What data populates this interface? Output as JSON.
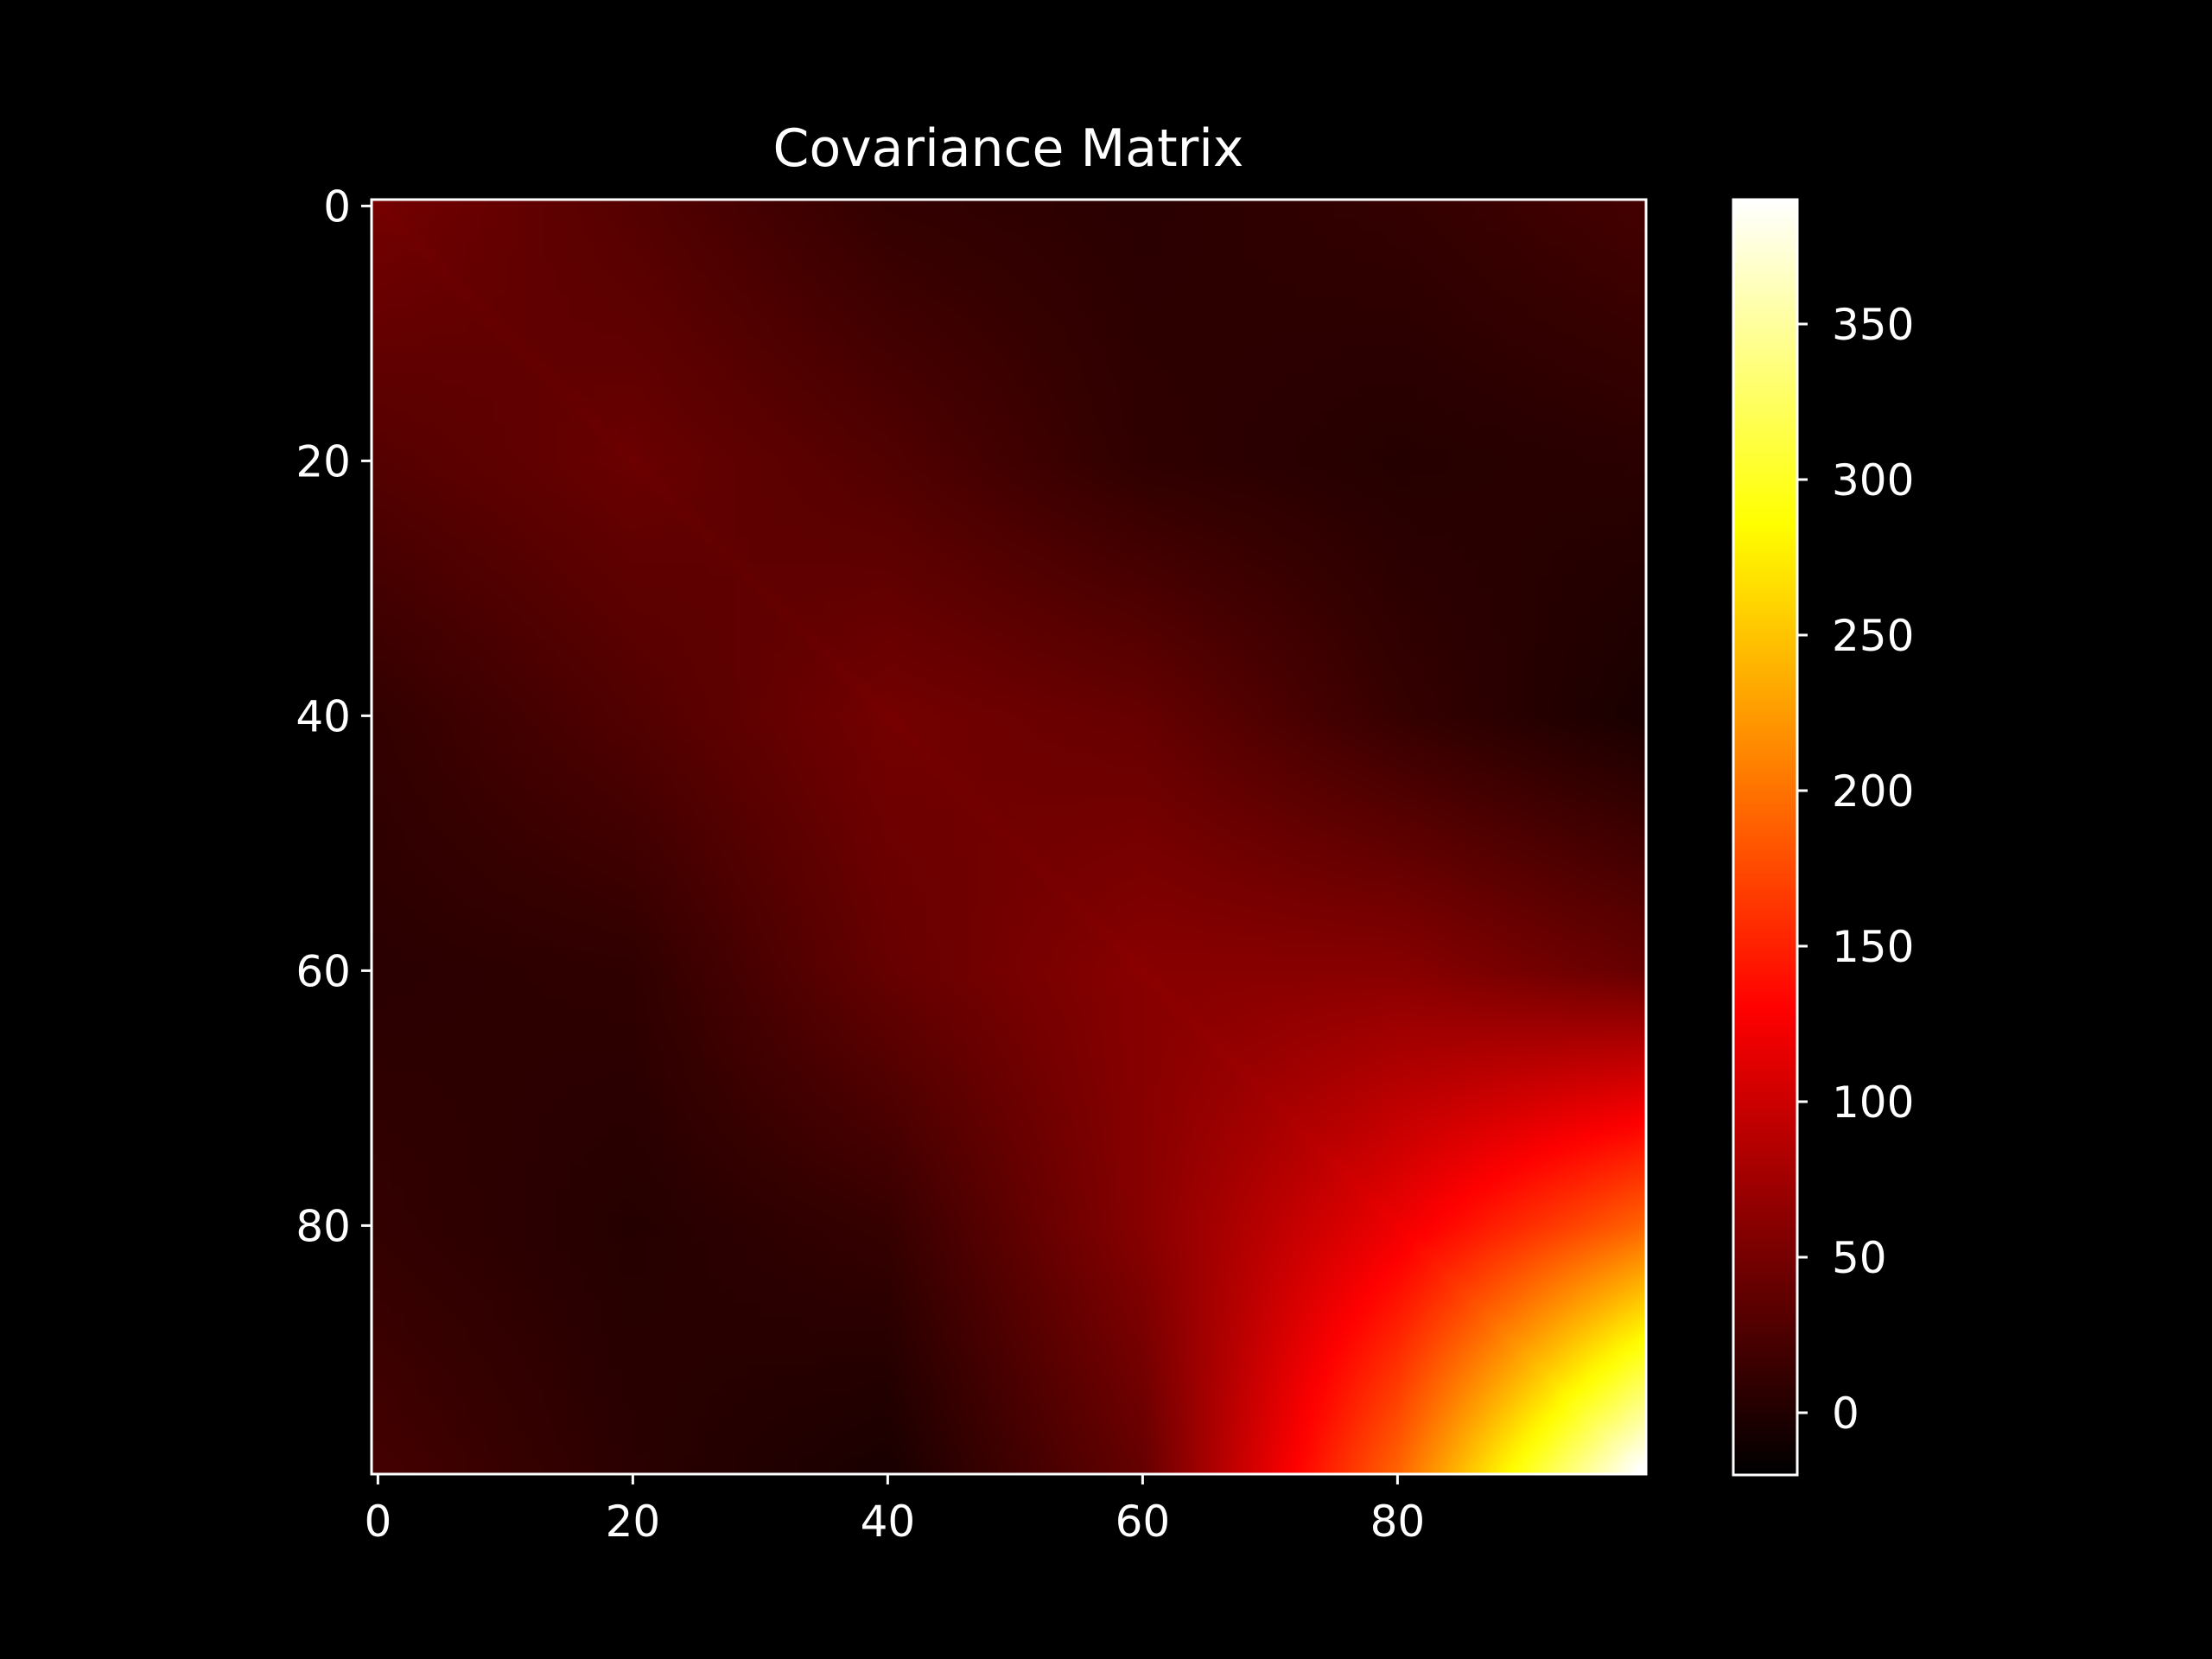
{
  "chart_data": {
    "type": "heatmap",
    "title": "Covariance Matrix",
    "xlabel": "",
    "ylabel": "",
    "n": 100,
    "colormap": "hot",
    "x_ticks": [
      0,
      20,
      40,
      60,
      80
    ],
    "y_ticks": [
      0,
      20,
      40,
      60,
      80
    ],
    "x_tick_labels": [
      "0",
      "20",
      "40",
      "60",
      "80"
    ],
    "y_tick_labels": [
      "0",
      "20",
      "40",
      "60",
      "80"
    ],
    "colorbar": {
      "vmin": -20,
      "vmax": 390,
      "ticks": [
        0,
        50,
        100,
        150,
        200,
        250,
        300,
        350
      ],
      "tick_labels": [
        "0",
        "50",
        "100",
        "150",
        "200",
        "250",
        "300",
        "350"
      ]
    },
    "sampled_values": {
      "description_rows_cols": [
        0,
        20,
        40,
        60,
        80,
        99
      ],
      "matrix": [
        [
          48,
          30,
          10,
          5,
          10,
          20
        ],
        [
          30,
          42,
          28,
          8,
          2,
          5
        ],
        [
          10,
          28,
          48,
          40,
          12,
          -5
        ],
        [
          5,
          8,
          40,
          60,
          60,
          40
        ],
        [
          10,
          2,
          12,
          60,
          120,
          190
        ],
        [
          20,
          5,
          -5,
          40,
          190,
          390
        ]
      ]
    },
    "background_color": "#000000",
    "foreground_color": "#ffffff"
  }
}
